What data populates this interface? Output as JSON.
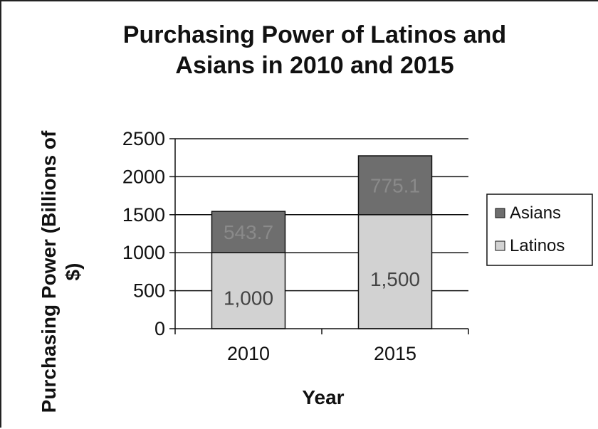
{
  "chart_data": {
    "type": "bar",
    "stacked": true,
    "title": [
      "Purchasing Power of Latinos and",
      "Asians in 2010 and 2015"
    ],
    "xlabel": "Year",
    "ylabel": [
      "Purchasing Power (Billions of",
      "$)"
    ],
    "categories": [
      "2010",
      "2015"
    ],
    "series": [
      {
        "name": "Latinos",
        "values": [
          1000,
          1500
        ],
        "labels": [
          "1,000",
          "1,500"
        ],
        "color": "#d2d2d2"
      },
      {
        "name": "Asians",
        "values": [
          543.7,
          775.1
        ],
        "labels": [
          "543.7",
          "775.1"
        ],
        "color": "#6e6e6e"
      }
    ],
    "ylim": [
      0,
      2500
    ],
    "yticks": [
      0,
      500,
      1000,
      1500,
      2000,
      2500
    ],
    "grid": true,
    "legend_position": "right"
  }
}
